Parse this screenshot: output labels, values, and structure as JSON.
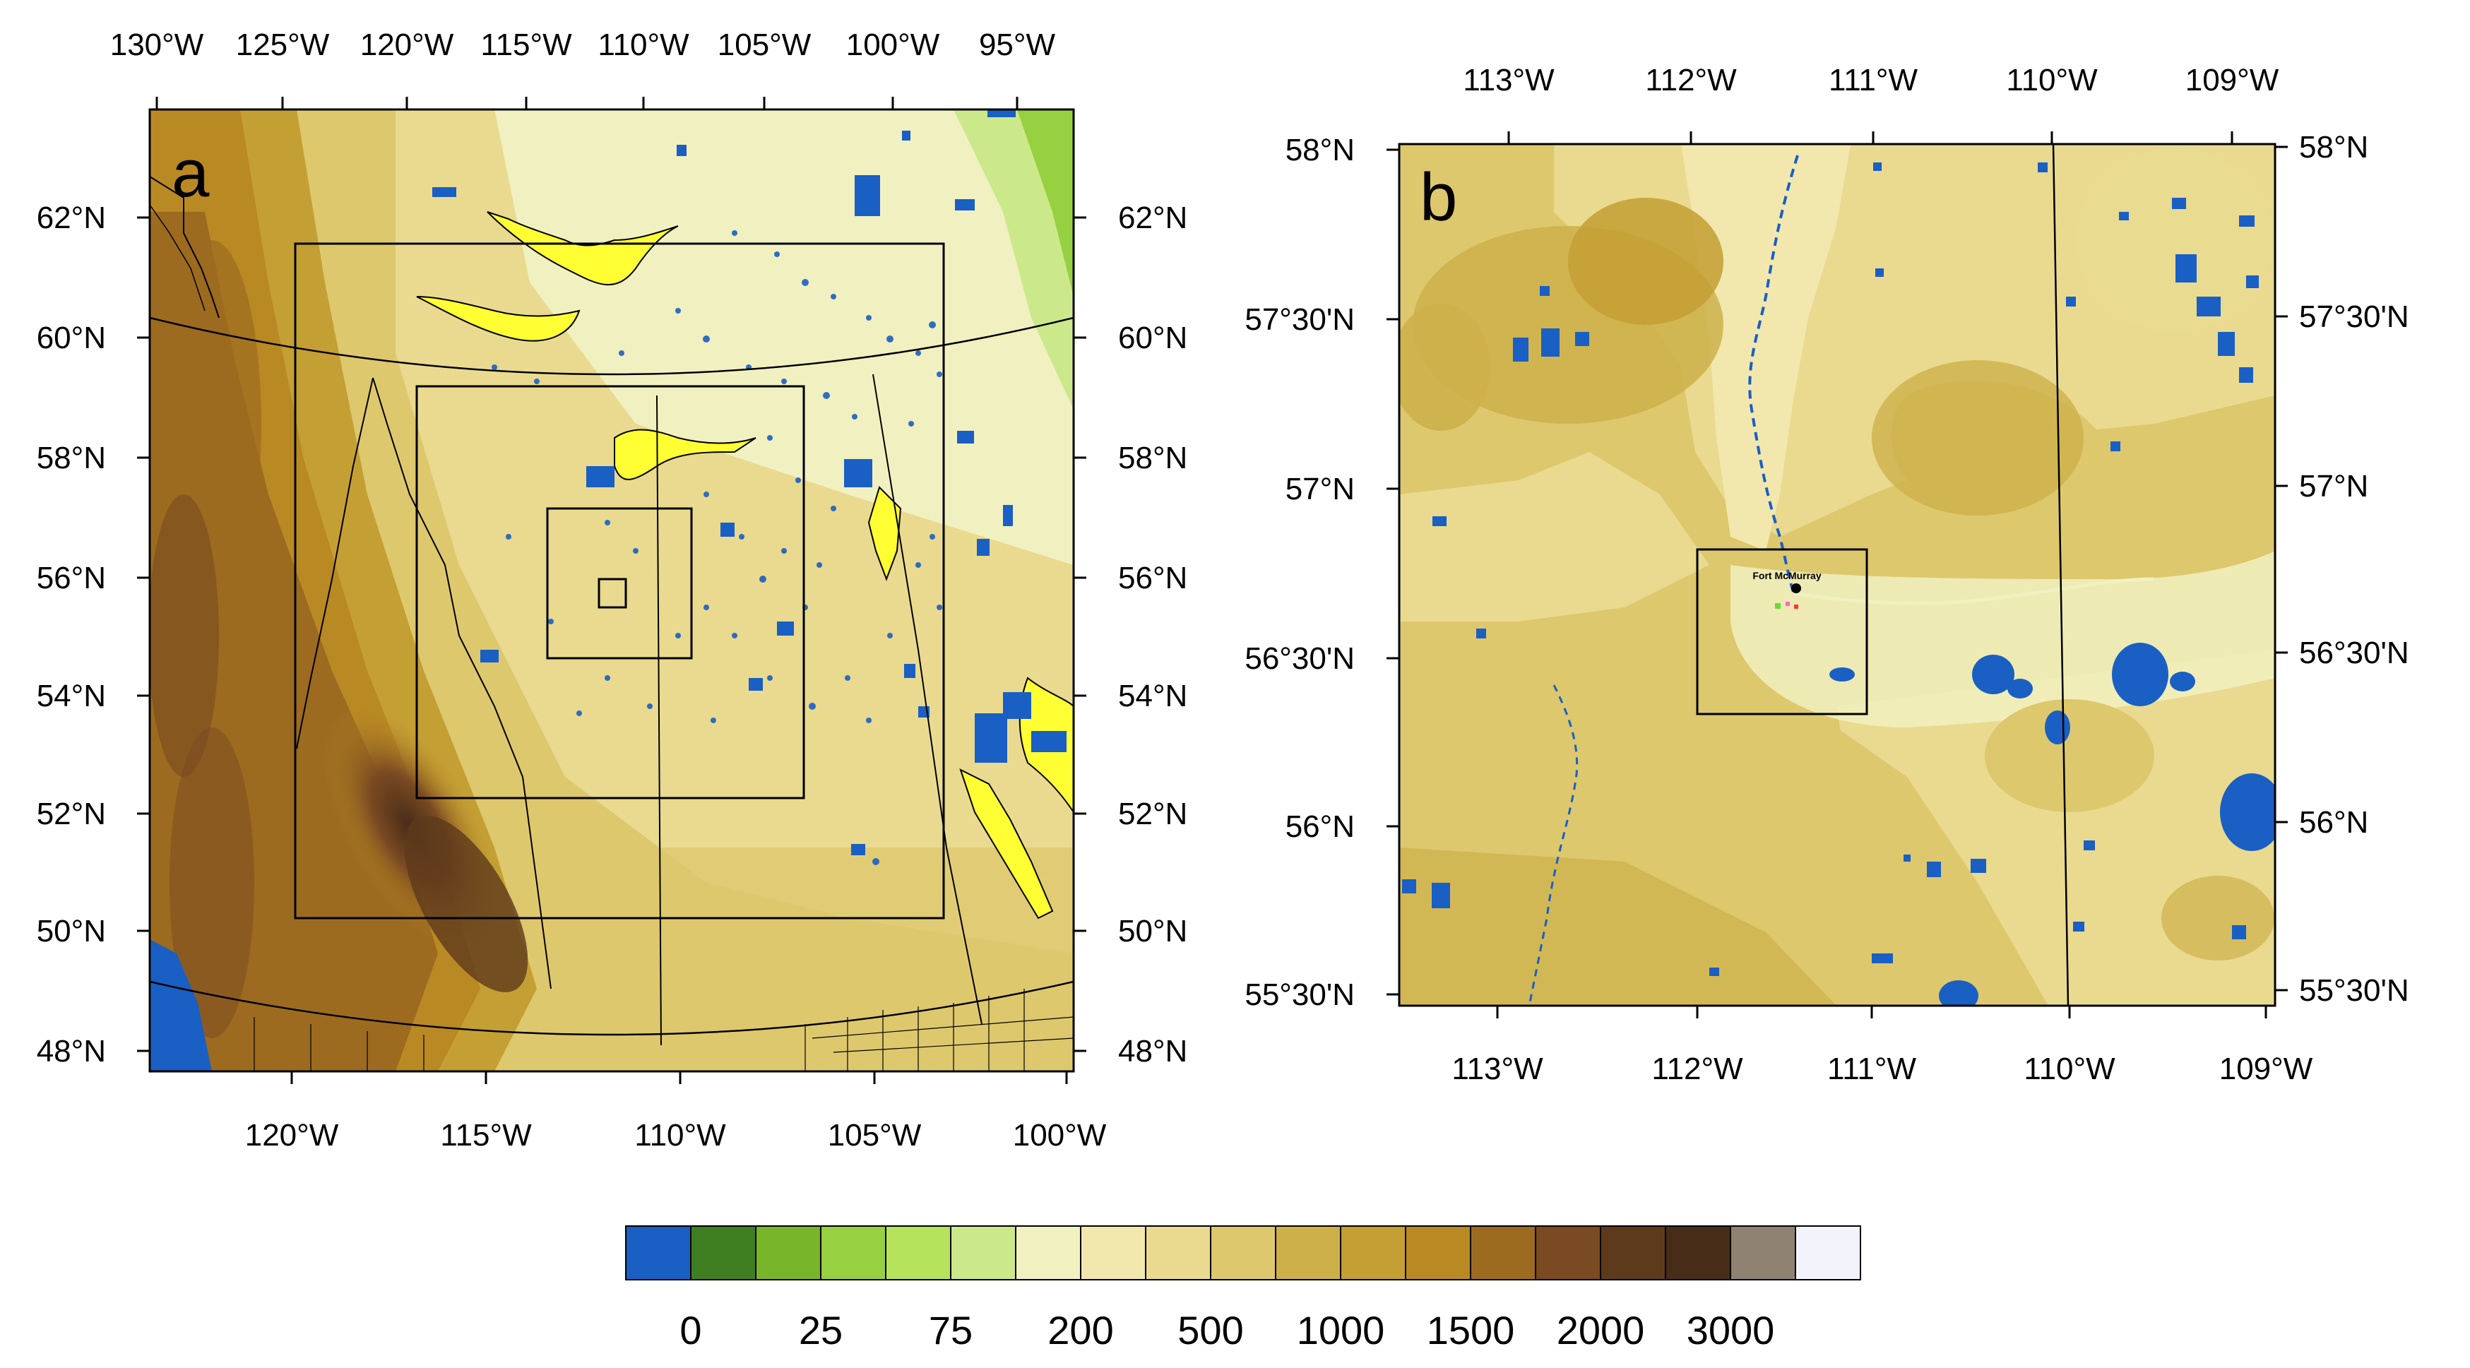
{
  "panel_a": {
    "label": "a",
    "top_lon_labels": [
      "130°W",
      "125°W",
      "120°W",
      "115°W",
      "110°W",
      "105°W",
      "100°W",
      "95°W"
    ],
    "bottom_lon_labels": [
      "120°W",
      "115°W",
      "110°W",
      "105°W",
      "100°W"
    ],
    "lat_labels": [
      "62°N",
      "60°N",
      "58°N",
      "56°N",
      "54°N",
      "52°N",
      "50°N",
      "48°N"
    ]
  },
  "panel_b": {
    "label": "b",
    "lon_labels": [
      "113°W",
      "112°W",
      "111°W",
      "110°W",
      "109°W"
    ],
    "lat_labels": [
      "58°N",
      "57°30'N",
      "57°N",
      "56°30'N",
      "56°N",
      "55°30'N"
    ],
    "place_label": "Fort McMurray"
  },
  "colorbar": {
    "colors": [
      "#1a5fc4",
      "#3f7f22",
      "#78b52a",
      "#97d040",
      "#b5e35c",
      "#cbe98a",
      "#f1f0c0",
      "#f2e8ae",
      "#e9da8f",
      "#ddc86d",
      "#cdb04a",
      "#c49f34",
      "#b98924",
      "#9c6b1f",
      "#7a4a22",
      "#5e3a1c",
      "#472c18",
      "#8f8272",
      "#f3f4fb"
    ],
    "tick_labels": [
      "0",
      "25",
      "75",
      "200",
      "500",
      "1000",
      "1500",
      "2000",
      "3000"
    ]
  }
}
